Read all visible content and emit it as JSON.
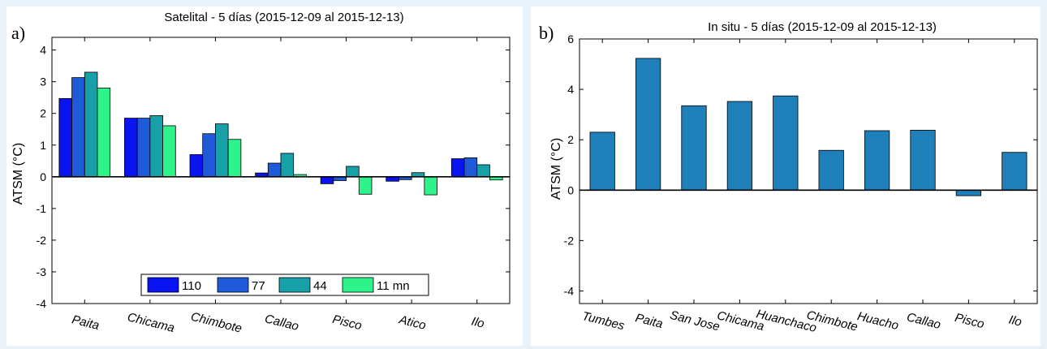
{
  "chart_data": [
    {
      "panel_label": "a)",
      "type": "bar",
      "title": "Satelital - 5 días (2015-12-09  al  2015-12-13)",
      "ylabel": "ATSM  (°C)",
      "xlabel": "",
      "ylim": [
        -4,
        4.4
      ],
      "yticks": [
        -4,
        -3,
        -2,
        -1,
        0,
        1,
        2,
        3,
        4
      ],
      "categories": [
        "Paita",
        "Chicama",
        "Chimbote",
        "Callao",
        "Pisco",
        "Atico",
        "Ilo"
      ],
      "series": [
        {
          "name": "110",
          "color": "#0a14f0",
          "values": [
            2.47,
            1.85,
            0.7,
            0.12,
            -0.22,
            -0.14,
            0.57
          ]
        },
        {
          "name": "77",
          "color": "#1f5bd8",
          "values": [
            3.13,
            1.85,
            1.36,
            0.43,
            -0.12,
            -0.09,
            0.6
          ]
        },
        {
          "name": "44",
          "color": "#17a0a8",
          "values": [
            3.3,
            1.93,
            1.67,
            0.74,
            0.33,
            0.13,
            0.38
          ]
        },
        {
          "name": "11 mn",
          "color": "#2ef28a",
          "values": [
            2.8,
            1.61,
            1.18,
            0.07,
            -0.55,
            -0.57,
            -0.1
          ]
        }
      ],
      "legend": "bottom-center",
      "grid": false
    },
    {
      "panel_label": "b)",
      "type": "bar",
      "title": "In situ - 5 días (2015-12-09  al  2015-12-13)",
      "ylabel": "ATSM  (°C)",
      "xlabel": "",
      "ylim": [
        -4.5,
        6
      ],
      "yticks": [
        -4,
        -2,
        0,
        2,
        4,
        6
      ],
      "categories": [
        "Tumbes",
        "Paita",
        "San Jose",
        "Chicama",
        "Huanchaco",
        "Chimbote",
        "Huacho",
        "Callao",
        "Pisco",
        "Ilo"
      ],
      "series": [
        {
          "color": "#1f7fb8",
          "values": [
            2.3,
            5.23,
            3.35,
            3.52,
            3.74,
            1.58,
            2.36,
            2.38,
            -0.22,
            1.5
          ]
        }
      ],
      "grid": false
    }
  ]
}
